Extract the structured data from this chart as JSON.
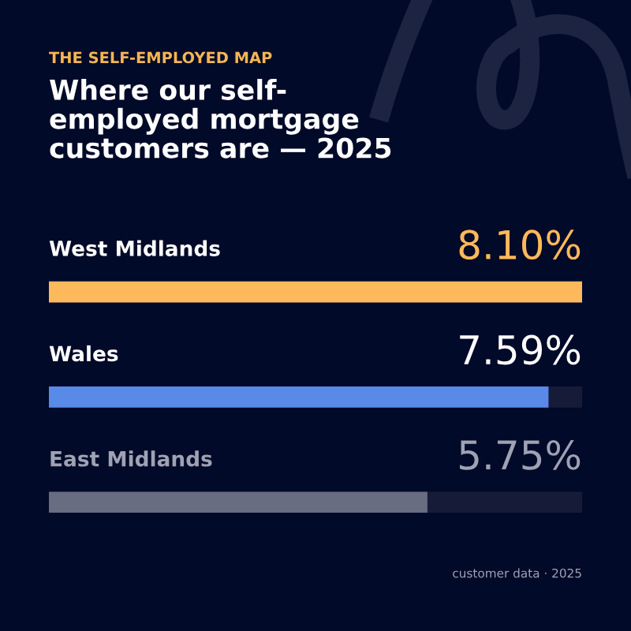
{
  "chart_data": {
    "type": "bar",
    "orientation": "horizontal",
    "subtitle": "THE SELF-EMPLOYED MAP",
    "title": "Where our self-employed mortgage customers are — 2025",
    "categories": [
      "West Midlands",
      "Wales",
      "East Midlands"
    ],
    "values": [
      8.1,
      7.59,
      5.75
    ],
    "colors": [
      "#fdb95b",
      "#5a8ae8",
      "#696d82"
    ],
    "value_labels": [
      "8.10%",
      "7.59%",
      "5.75%"
    ],
    "xlim": [
      0,
      8.1
    ],
    "annotations": [
      "customer data · 2025"
    ]
  }
}
